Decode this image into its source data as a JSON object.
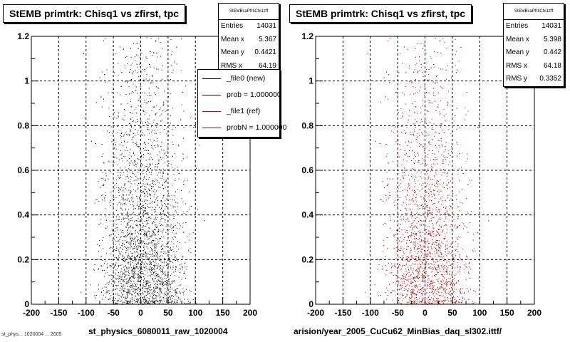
{
  "panels": [
    {
      "title": "StEMB primtrk: Chisq1 vs zfirst, tpc",
      "stats": {
        "header": "StEMBcaPfrkChi1zff",
        "rows": [
          {
            "label": "Entries",
            "value": "14031"
          },
          {
            "label": "Mean x",
            "value": "5.367"
          },
          {
            "label": "Mean y",
            "value": "0.4421"
          },
          {
            "label": "RMS x",
            "value": "64.19"
          }
        ]
      },
      "legend": [
        {
          "label": "_file0 (new)",
          "color": "#000000"
        },
        {
          "label": "prob = 1.000000",
          "color": "#000000"
        },
        {
          "label": "_file1 (ref)",
          "color": "#cc0000"
        },
        {
          "label": "probN = 1.000000",
          "color": "#cc0000"
        }
      ],
      "xaxis_title": "st_physics_6080011_raw_1020004",
      "footer": "st_phys... 1020004 ... 2005"
    },
    {
      "title": "StEMB primtrk: Chisq1 vs zfirst, tpc",
      "stats": {
        "header": "StEMBcaPfrkChi1zff",
        "rows": [
          {
            "label": "Entries",
            "value": "14031"
          },
          {
            "label": "Mean x",
            "value": "5.398"
          },
          {
            "label": "Mean y",
            "value": "0.442"
          },
          {
            "label": "RMS x",
            "value": "64.18"
          },
          {
            "label": "RMS y",
            "value": "0.3352"
          }
        ]
      },
      "xaxis_title": "arision/year_2005_CuCu62_MinBias_daq_sl302.ittf/"
    }
  ],
  "chart_data": [
    {
      "type": "scatter",
      "title": "StEMB primtrk: Chisq1 vs zfirst, tpc",
      "xlabel": "st_physics_6080011_raw_1020004",
      "ylabel": "",
      "xlim": [
        -200,
        200
      ],
      "ylim": [
        0,
        1.2
      ],
      "x_ticks": [
        -200,
        -150,
        -100,
        -50,
        0,
        50,
        100,
        150,
        200
      ],
      "y_ticks": [
        0,
        0.2,
        0.4,
        0.6,
        0.8,
        1,
        1.2
      ],
      "x_tick_labels": [
        "-200",
        "-150",
        "-100",
        "-50",
        "0",
        "50",
        "100",
        "150",
        "200"
      ],
      "y_tick_labels": [
        "0",
        "0.2",
        "0.4",
        "0.6",
        "0.8",
        "1",
        "1.2"
      ],
      "grid": true,
      "marker_color": "#000000",
      "entries": 14031,
      "mean_x": 5.367,
      "mean_y": 0.4421,
      "rms_x": 64.19,
      "x_range_of_points": [
        -150,
        150
      ],
      "y_range_of_points": [
        0,
        1.2
      ],
      "density": "highest near y=0, decreasing toward y=1.2"
    },
    {
      "type": "scatter",
      "title": "StEMB primtrk: Chisq1 vs zfirst, tpc",
      "xlabel": "arision/year_2005_CuCu62_MinBias_daq_sl302.ittf/",
      "ylabel": "",
      "xlim": [
        -200,
        200
      ],
      "ylim": [
        0,
        1.2
      ],
      "x_ticks": [
        -200,
        -150,
        -100,
        -50,
        0,
        50,
        100,
        150,
        200
      ],
      "y_ticks": [
        0,
        0.2,
        0.4,
        0.6,
        0.8,
        1,
        1.2
      ],
      "x_tick_labels": [
        "-200",
        "-150",
        "-100",
        "-50",
        "0",
        "50",
        "100",
        "150",
        "200"
      ],
      "y_tick_labels": [
        "0",
        "0.2",
        "0.4",
        "0.6",
        "0.8",
        "1",
        "1.2"
      ],
      "grid": true,
      "marker_color": "#cc0000",
      "entries": 14031,
      "mean_x": 5.398,
      "mean_y": 0.442,
      "rms_x": 64.18,
      "rms_y": 0.3352,
      "x_range_of_points": [
        -150,
        150
      ],
      "y_range_of_points": [
        0,
        1.2
      ],
      "density": "highest near y=0, decreasing toward y=1.2"
    }
  ]
}
